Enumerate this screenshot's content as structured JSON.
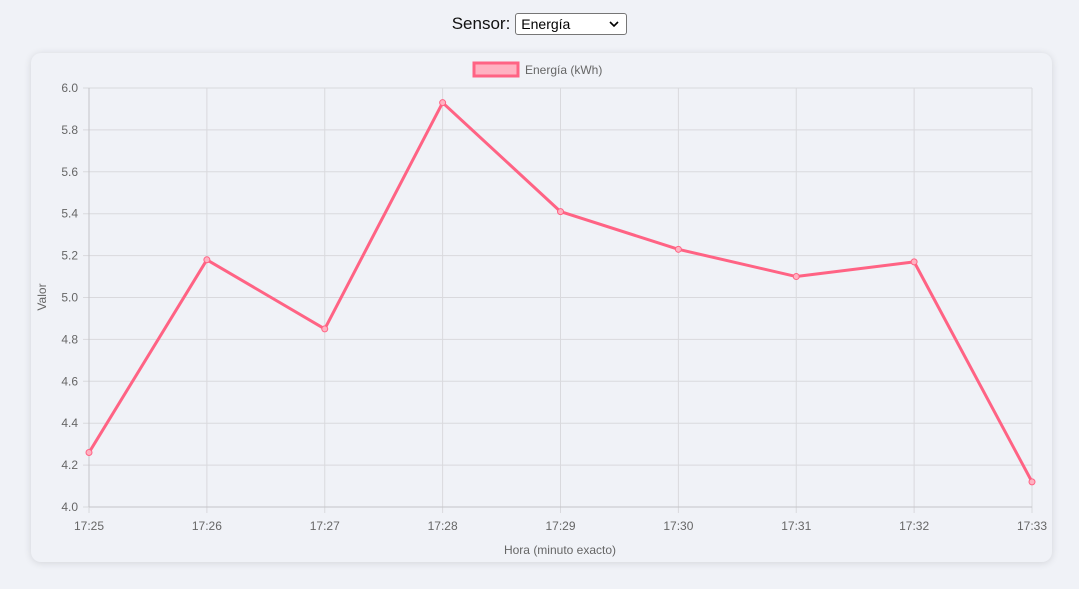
{
  "selector": {
    "label": "Sensor:",
    "selected": "Energía"
  },
  "chart_data": {
    "type": "line",
    "x": [
      "17:25",
      "17:26",
      "17:27",
      "17:28",
      "17:29",
      "17:30",
      "17:31",
      "17:32",
      "17:33"
    ],
    "series": [
      {
        "name": "Energía (kWh)",
        "values": [
          4.26,
          5.18,
          4.85,
          5.93,
          5.41,
          5.23,
          5.1,
          5.17,
          4.12
        ],
        "color": "#ff6384",
        "fill": "#ffb1c1"
      }
    ],
    "xlabel": "Hora (minuto exacto)",
    "ylabel": "Valor",
    "ylim": [
      4.0,
      6.0
    ],
    "yticks": [
      "4.0",
      "4.2",
      "4.4",
      "4.6",
      "4.8",
      "5.0",
      "5.2",
      "5.4",
      "5.6",
      "5.8",
      "6.0"
    ],
    "grid": true,
    "legend": "top-center"
  }
}
